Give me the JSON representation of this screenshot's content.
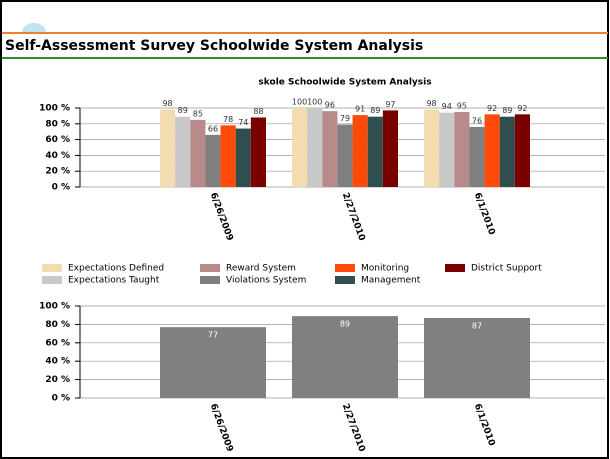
{
  "header": {
    "title": "Self-Assessment Survey Schoolwide System Analysis"
  },
  "chart_data": [
    {
      "type": "bar",
      "title": "skole Schoolwide System Analysis",
      "categories": [
        "6/26/2009",
        "2/27/2010",
        "6/1/2010"
      ],
      "series": [
        {
          "name": "Expectations Defined",
          "color": "#f3dcb0",
          "values": [
            98,
            100,
            98
          ]
        },
        {
          "name": "Expectations Taught",
          "color": "#c8c8c8",
          "values": [
            89,
            100,
            94
          ]
        },
        {
          "name": "Reward System",
          "color": "#b88a8a",
          "values": [
            85,
            96,
            95
          ]
        },
        {
          "name": "Violations System",
          "color": "#7f7f7f",
          "values": [
            66,
            79,
            76
          ]
        },
        {
          "name": "Monitoring",
          "color": "#ff4a0a",
          "values": [
            78,
            91,
            92
          ]
        },
        {
          "name": "Management",
          "color": "#2f4f4f",
          "values": [
            74,
            89,
            89
          ]
        },
        {
          "name": "District Support",
          "color": "#7a0000",
          "values": [
            88,
            97,
            92
          ]
        }
      ],
      "ylim": [
        0,
        100
      ],
      "yticks": [
        {
          "value": 0,
          "label": "0 %"
        },
        {
          "value": 20,
          "label": "20 %"
        },
        {
          "value": 40,
          "label": "40 %"
        },
        {
          "value": 60,
          "label": "60 %"
        },
        {
          "value": 80,
          "label": "80 %"
        },
        {
          "value": 100,
          "label": "100 %"
        }
      ],
      "grid": true
    },
    {
      "type": "bar",
      "categories": [
        "6/26/2009",
        "2/27/2010",
        "6/1/2010"
      ],
      "values": [
        77,
        89,
        87
      ],
      "color": "#808080",
      "ylim": [
        0,
        100
      ],
      "yticks": [
        {
          "value": 0,
          "label": "0 %"
        },
        {
          "value": 20,
          "label": "20 %"
        },
        {
          "value": 40,
          "label": "40 %"
        },
        {
          "value": 60,
          "label": "60 %"
        },
        {
          "value": 80,
          "label": "80 %"
        },
        {
          "value": 100,
          "label": "100 %"
        }
      ],
      "grid": true
    }
  ]
}
